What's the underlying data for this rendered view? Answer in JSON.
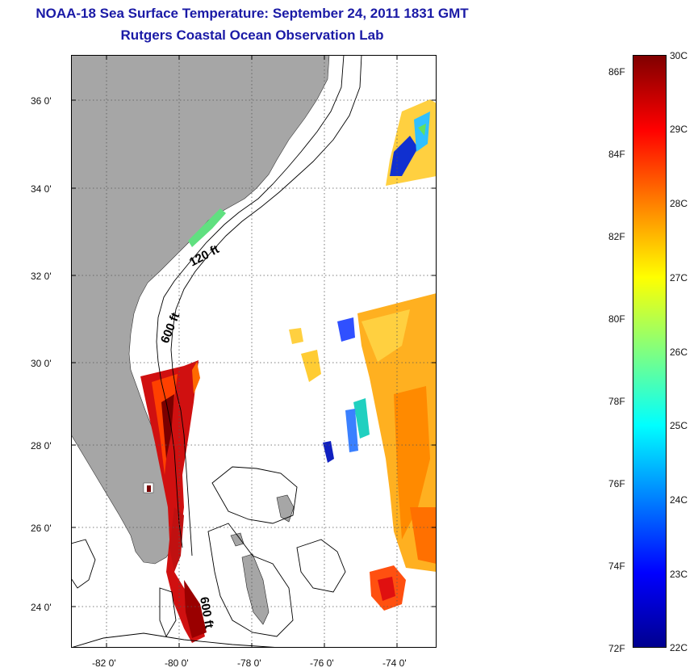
{
  "title": {
    "line1": "NOAA-18 Sea Surface Temperature:  September 24, 2011 1831 GMT",
    "line2": "Rutgers Coastal Ocean Observation Lab"
  },
  "map": {
    "lat_ticks": [
      "36 0'",
      "34 0'",
      "32 0'",
      "30 0'",
      "28 0'",
      "26 0'",
      "24 0'"
    ],
    "lon_ticks": [
      "-82 0'",
      "-80 0'",
      "-78 0'",
      "-76 0'",
      "-74 0'"
    ],
    "contour_labels": [
      "120 ft",
      "600 ft",
      "600 ft"
    ],
    "colors": {
      "land": "#a6a6a6",
      "ocean": "#ffffff",
      "grid": "#555555",
      "contour": "#000000"
    }
  },
  "colorbar": {
    "fahrenheit_labels": [
      "86F",
      "84F",
      "82F",
      "80F",
      "78F",
      "76F",
      "74F",
      "72F"
    ],
    "celsius_labels": [
      "30C",
      "29C",
      "28C",
      "27C",
      "26C",
      "25C",
      "24C",
      "23C",
      "22C"
    ],
    "colors": [
      "#00008f",
      "#0000ff",
      "#0080ff",
      "#00ffff",
      "#80ff80",
      "#ffff00",
      "#ff8000",
      "#ff0000",
      "#800000"
    ]
  }
}
